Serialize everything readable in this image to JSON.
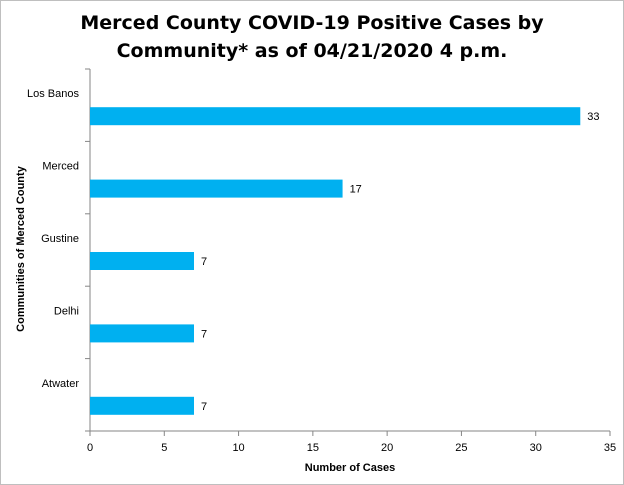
{
  "chart_data": {
    "type": "bar",
    "orientation": "horizontal",
    "title_line1": "Merced County COVID-19 Positive Cases by",
    "title_line2": "Community* as of 04/21/2020 4 p.m.",
    "xlabel": "Number of Cases",
    "ylabel": "Communities of Merced County",
    "categories": [
      "Los Banos",
      "Merced",
      "Gustine",
      "Delhi",
      "Atwater"
    ],
    "values": [
      33,
      17,
      7,
      7,
      7
    ],
    "xlim": [
      0,
      35
    ],
    "xticks": [
      0,
      5,
      10,
      15,
      20,
      25,
      30,
      35
    ],
    "data_labels": true,
    "grid": false,
    "legend": "none",
    "bar_color": "#00b0f0"
  }
}
